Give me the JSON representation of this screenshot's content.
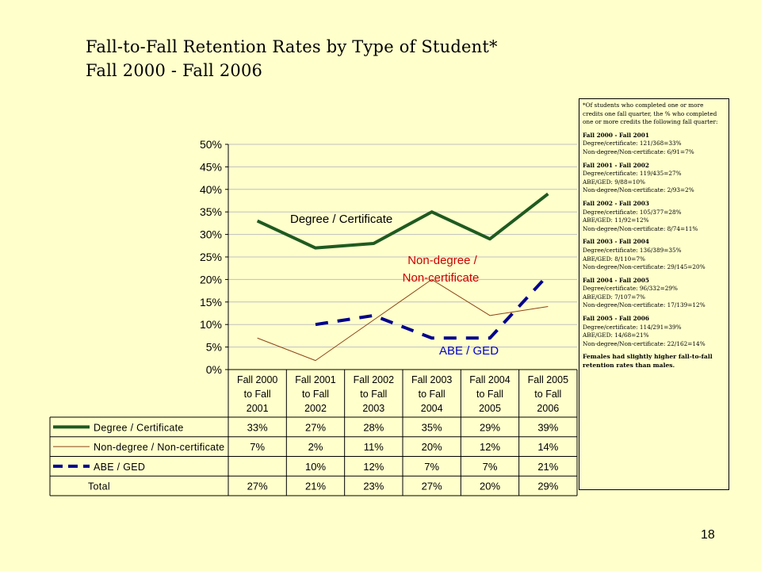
{
  "slide": {
    "title_line1": "Fall-to-Fall Retention Rates by Type of Student*",
    "title_line2": "Fall 2000 - Fall 2006",
    "page_number": "18"
  },
  "chart_data": {
    "type": "line",
    "categories": [
      [
        "Fall 2000",
        "to Fall",
        "2001"
      ],
      [
        "Fall 2001",
        "to Fall",
        "2002"
      ],
      [
        "Fall 2002",
        "to Fall",
        "2003"
      ],
      [
        "Fall 2003",
        "to Fall",
        "2004"
      ],
      [
        "Fall 2004",
        "to Fall",
        "2005"
      ],
      [
        "Fall 2005",
        "to Fall",
        "2006"
      ]
    ],
    "ylim": [
      0,
      50
    ],
    "yticks": [
      "0%",
      "5%",
      "10%",
      "15%",
      "20%",
      "25%",
      "30%",
      "35%",
      "40%",
      "45%",
      "50%"
    ],
    "series": [
      {
        "name": "Degree / Certificate",
        "values": [
          33,
          27,
          28,
          35,
          29,
          39
        ],
        "color": "#1F5A1F",
        "style": "solid-thick",
        "labels": [
          "33%",
          "27%",
          "28%",
          "35%",
          "29%",
          "39%"
        ]
      },
      {
        "name": "Non-degree / Non-certificate",
        "values": [
          7,
          2,
          11,
          20,
          12,
          14
        ],
        "color": "#8B4513",
        "style": "solid-thin",
        "labels": [
          "7%",
          "2%",
          "11%",
          "20%",
          "12%",
          "14%"
        ]
      },
      {
        "name": "ABE / GED",
        "values": [
          null,
          10,
          12,
          7,
          7,
          21
        ],
        "color": "#00008B",
        "style": "dashed",
        "labels": [
          "",
          "10%",
          "12%",
          "7%",
          "7%",
          "21%"
        ]
      }
    ],
    "total_row": {
      "name": "Total",
      "labels": [
        "27%",
        "21%",
        "23%",
        "27%",
        "20%",
        "29%"
      ]
    },
    "annotations": [
      {
        "text": "Degree / Certificate",
        "color": "#000000"
      },
      {
        "text": "Non-degree /",
        "color": "#CC0000"
      },
      {
        "text": "Non-certificate",
        "color": "#CC0000"
      },
      {
        "text": "ABE / GED",
        "color": "#0000CC"
      }
    ],
    "grid": true
  },
  "notes": {
    "intro": "*Of students who completed one or more credits one fall quarter, the % who completed one or more credits the following fall quarter:",
    "periods": [
      {
        "title": "Fall 2000 - Fall 2001",
        "lines": [
          "Degree/certificate: 121/368=33%",
          "Non-degree/Non-certificate: 6/91=7%"
        ]
      },
      {
        "title": "Fall 2001 - Fall 2002",
        "lines": [
          "Degree/certificate: 119/435=27%",
          "ABE/GED: 9/88=10%",
          "Non-degree/Non-certificate: 2/93=2%"
        ]
      },
      {
        "title": "Fall 2002 - Fall 2003",
        "lines": [
          "Degree/certificate: 105/377=28%",
          "ABE/GED: 11/92=12%",
          "Non-degree/Non-certificate: 8/74=11%"
        ]
      },
      {
        "title": "Fall 2003 - Fall 2004",
        "lines": [
          "Degree/certificate: 136/389=35%",
          "ABE/GED: 8/110=7%",
          "Non-degree/Non-certificate: 29/145=20%"
        ]
      },
      {
        "title": "Fall 2004 - Fall 2005",
        "lines": [
          "Degree/certificate: 96/332=29%",
          "ABE/GED: 7/107=7%",
          "Non-degree/Non-certificate: 17/139=12%"
        ]
      },
      {
        "title": "Fall 2005 - Fall 2006",
        "lines": [
          "Degree/certificate: 114/291=39%",
          "ABE/GED: 14/68=21%",
          "Non-degree/Non-certificate: 22/162=14%"
        ]
      }
    ],
    "footer": "Females had slightly higher fall-to-fall retention rates than males."
  }
}
